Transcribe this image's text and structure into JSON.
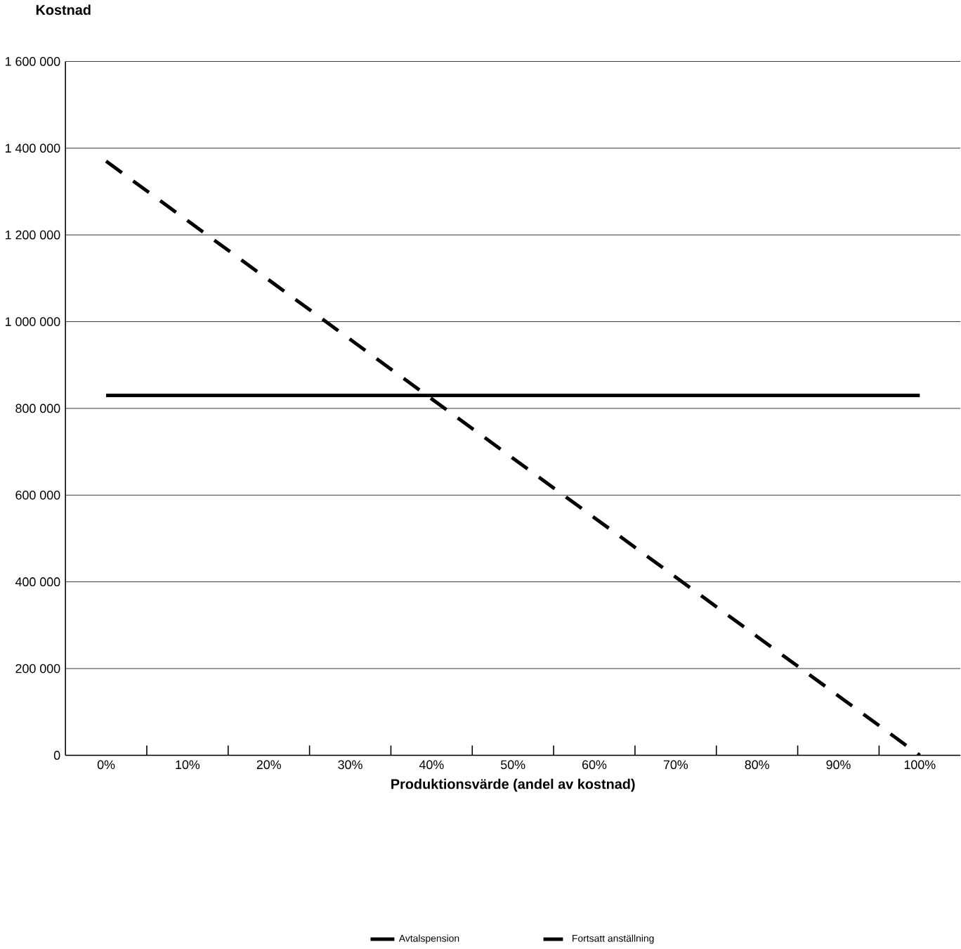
{
  "chart_data": {
    "type": "line",
    "ylabel": "Kostnad",
    "xlabel": "Produktionsvärde (andel av kostnad)",
    "categories": [
      "0%",
      "10%",
      "20%",
      "30%",
      "40%",
      "50%",
      "60%",
      "70%",
      "80%",
      "90%",
      "100%"
    ],
    "series": [
      {
        "name": "Avtalspension",
        "color": "#000000",
        "line_style": "solid",
        "values": [
          830000,
          830000,
          830000,
          830000,
          830000,
          830000,
          830000,
          830000,
          830000,
          830000,
          830000
        ]
      },
      {
        "name": "Fortsatt anställning",
        "color": "#000000",
        "line_style": "dashed",
        "values": [
          1370000,
          1233000,
          1096000,
          959000,
          822000,
          685000,
          548000,
          411000,
          274000,
          137000,
          0
        ]
      }
    ],
    "ylim": [
      0,
      1600000
    ],
    "yticks": [
      {
        "value": 0,
        "label": "0"
      },
      {
        "value": 200000,
        "label": "200 000"
      },
      {
        "value": 400000,
        "label": "400 000"
      },
      {
        "value": 600000,
        "label": "600 000"
      },
      {
        "value": 800000,
        "label": "800 000"
      },
      {
        "value": 1000000,
        "label": "1 000 000"
      },
      {
        "value": 1200000,
        "label": "1 200 000"
      },
      {
        "value": 1400000,
        "label": "1 400 000"
      },
      {
        "value": 1600000,
        "label": "1 600 000"
      }
    ],
    "grid": "y",
    "legend": "bottom",
    "marker": "none"
  }
}
